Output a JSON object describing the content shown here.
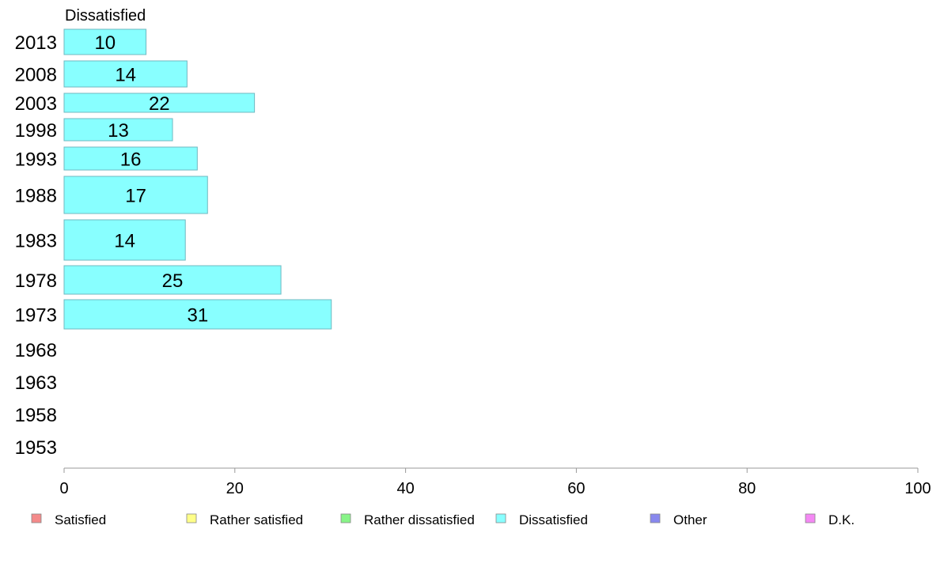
{
  "chart_data": {
    "type": "bar",
    "orientation": "horizontal",
    "title": "",
    "xlabel": "",
    "ylabel": "",
    "xlim": [
      0,
      100
    ],
    "x_ticks": [
      0,
      20,
      40,
      60,
      80,
      100
    ],
    "grid": false,
    "legend_position": "bottom",
    "shown_series": "Dissatisfied",
    "categories": [
      "2013",
      "2008",
      "2003",
      "1998",
      "1993",
      "1988",
      "1983",
      "1978",
      "1973",
      "1968",
      "1963",
      "1958",
      "1953"
    ],
    "series": [
      {
        "name": "Satisfied",
        "color": "#f48a8a",
        "values": [
          null,
          null,
          null,
          null,
          null,
          null,
          null,
          null,
          null,
          null,
          null,
          null,
          null
        ]
      },
      {
        "name": "Rather satisfied",
        "color": "#ffff88",
        "values": [
          null,
          null,
          null,
          null,
          null,
          null,
          null,
          null,
          null,
          null,
          null,
          null,
          null
        ]
      },
      {
        "name": "Rather dissatisfied",
        "color": "#88f488",
        "values": [
          null,
          null,
          null,
          null,
          null,
          null,
          null,
          null,
          null,
          null,
          null,
          null,
          null
        ]
      },
      {
        "name": "Dissatisfied",
        "color": "#88ffff",
        "values": [
          9.6,
          14.4,
          22.3,
          12.7,
          15.6,
          16.8,
          14.2,
          25.4,
          31.3,
          null,
          null,
          null,
          null
        ],
        "labels": [
          "10",
          "14",
          "22",
          "13",
          "16",
          "17",
          "14",
          "25",
          "31",
          null,
          null,
          null,
          null
        ]
      },
      {
        "name": "Other",
        "color": "#8888ee",
        "values": [
          null,
          null,
          null,
          null,
          null,
          null,
          null,
          null,
          null,
          null,
          null,
          null,
          null
        ]
      },
      {
        "name": "D.K.",
        "color": "#f488f4",
        "values": [
          null,
          null,
          null,
          null,
          null,
          null,
          null,
          null,
          null,
          null,
          null,
          null,
          null
        ]
      }
    ]
  }
}
